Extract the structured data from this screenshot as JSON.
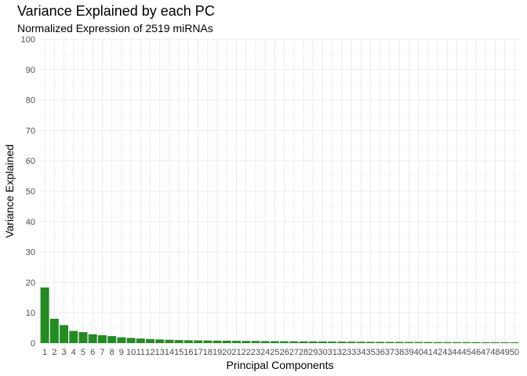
{
  "chart_data": {
    "type": "bar",
    "title": "Variance Explained by each PC",
    "subtitle": "Normalized Expression of 2519 miRNAs",
    "xlabel": "Principal Components",
    "ylabel": "Variance Explained",
    "ylim": [
      0,
      100
    ],
    "yticks": [
      "0",
      "10",
      "20",
      "30",
      "40",
      "50",
      "60",
      "70",
      "80",
      "90",
      "100"
    ],
    "grid": true,
    "legend": "none",
    "bar_color": "#228b22",
    "categories": [
      "1",
      "2",
      "3",
      "4",
      "5",
      "6",
      "7",
      "8",
      "9",
      "10",
      "11",
      "12",
      "13",
      "14",
      "15",
      "16",
      "17",
      "18",
      "19",
      "20",
      "21",
      "22",
      "23",
      "24",
      "25",
      "26",
      "27",
      "28",
      "29",
      "30",
      "31",
      "32",
      "33",
      "34",
      "35",
      "36",
      "37",
      "38",
      "39",
      "40",
      "41",
      "42",
      "43",
      "44",
      "45",
      "46",
      "47",
      "48",
      "49",
      "50"
    ],
    "values": [
      18.3,
      8.0,
      5.9,
      4.0,
      3.6,
      2.9,
      2.6,
      2.3,
      1.9,
      1.7,
      1.5,
      1.3,
      1.2,
      1.1,
      1.0,
      0.95,
      0.9,
      0.85,
      0.8,
      0.78,
      0.75,
      0.72,
      0.7,
      0.65,
      0.62,
      0.6,
      0.58,
      0.56,
      0.54,
      0.52,
      0.5,
      0.48,
      0.46,
      0.44,
      0.42,
      0.4,
      0.39,
      0.38,
      0.37,
      0.36,
      0.35,
      0.34,
      0.33,
      0.32,
      0.31,
      0.3,
      0.29,
      0.28,
      0.27,
      0.26
    ]
  }
}
